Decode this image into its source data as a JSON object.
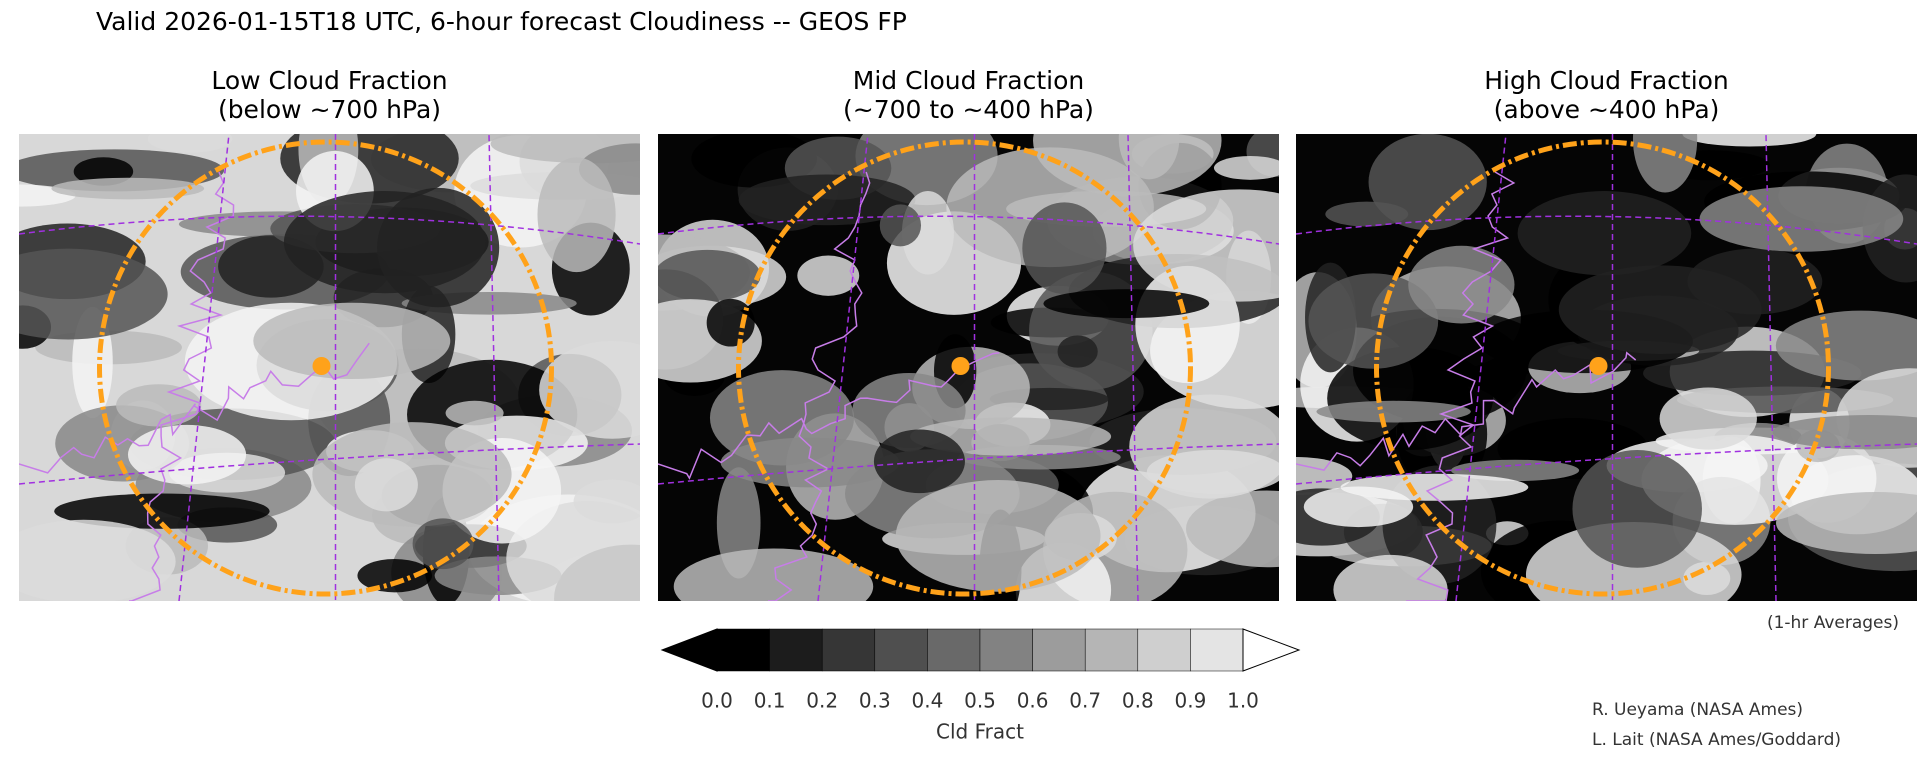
{
  "header": {
    "title": "Valid 2026-01-15T18 UTC, 6-hour forecast Cloudiness -- GEOS FP"
  },
  "panels": [
    {
      "title": "Low Cloud Fraction",
      "subtitle": "(below ~700 hPa)"
    },
    {
      "title": "Mid Cloud Fraction",
      "subtitle": "(~700 to ~400 hPa)"
    },
    {
      "title": "High Cloud Fraction",
      "subtitle": "(above ~400 hPa)"
    }
  ],
  "colorbar": {
    "ticks": [
      "0.0",
      "0.1",
      "0.2",
      "0.3",
      "0.4",
      "0.5",
      "0.6",
      "0.7",
      "0.8",
      "0.9",
      "1.0"
    ],
    "colors": [
      "#000000",
      "#1c1c1c",
      "#363636",
      "#4f4f4f",
      "#696969",
      "#828282",
      "#9c9c9c",
      "#b5b5b5",
      "#cfcfcf",
      "#e4e4e4"
    ],
    "under_color": "#000000",
    "over_color": "#ffffff",
    "label": "Cld Fract"
  },
  "note": "(1-hr Averages)",
  "credits": [
    "R. Ueyama (NASA Ames)",
    "L. Lait (NASA Ames/Goddard)"
  ]
}
